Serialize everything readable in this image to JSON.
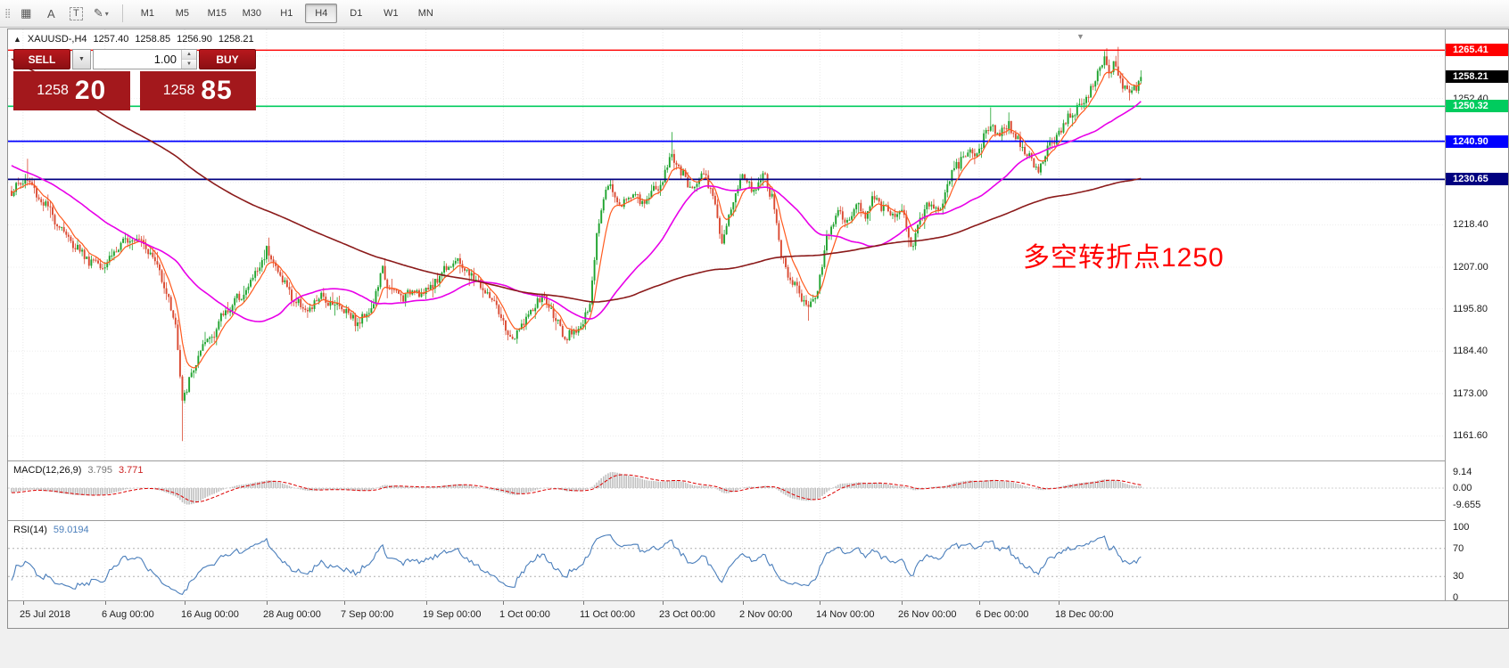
{
  "toolbar": {
    "icons": [
      {
        "name": "toolbar-drag-handle",
        "glyph": "⣿"
      },
      {
        "name": "grid-icon",
        "glyph": "▦"
      },
      {
        "name": "text-annotation-icon",
        "glyph": "A"
      },
      {
        "name": "text-label-icon",
        "glyph": "T"
      },
      {
        "name": "draw-tool-icon",
        "glyph": "✎"
      },
      {
        "name": "dropdown-caret-icon",
        "glyph": "▾"
      }
    ],
    "timeframes": [
      "M1",
      "M5",
      "M15",
      "M30",
      "H1",
      "H4",
      "D1",
      "W1",
      "MN"
    ],
    "active_timeframe": "H4"
  },
  "chart": {
    "header": {
      "collapse_icon": "▲",
      "symbol": "XAUUSD-,H4",
      "open": "1257.40",
      "high": "1258.85",
      "low": "1256.90",
      "close": "1258.21"
    },
    "one_click": {
      "sell_label": "SELL",
      "buy_label": "BUY",
      "volume": "1.00",
      "sell_price": {
        "base": "1258",
        "pips": "20"
      },
      "buy_price": {
        "base": "1258",
        "pips": "85"
      },
      "dropdown_icon": "▼",
      "spin_up_icon": "▲",
      "spin_down_icon": "▼"
    },
    "annotation": {
      "text": "多空转折点1250",
      "color": "#ff0000"
    },
    "shift_marker_icon": "▼"
  },
  "chart_data": {
    "type": "candlestick",
    "symbol": "XAUUSD-",
    "timeframe": "H4",
    "last_ohlc": {
      "open": 1257.4,
      "high": 1258.85,
      "low": 1256.9,
      "close": 1258.21
    },
    "y_range": [
      1155,
      1271
    ],
    "grid_prices": [
      1161.6,
      1173.0,
      1184.4,
      1195.8,
      1207.0,
      1218.4,
      1229.8,
      1241.2,
      1252.4,
      1263.8
    ],
    "y_axis_ticks": [
      {
        "label": "1252.40",
        "price": 1252.4
      },
      {
        "label": "1218.40",
        "price": 1218.4
      },
      {
        "label": "1207.00",
        "price": 1207.0
      },
      {
        "label": "1195.80",
        "price": 1195.8
      },
      {
        "label": "1184.40",
        "price": 1184.4
      },
      {
        "label": "1173.00",
        "price": 1173.0
      },
      {
        "label": "1161.60",
        "price": 1161.6
      }
    ],
    "hlines": [
      {
        "label": "1265.41",
        "price": 1265.41,
        "color": "#ff0000",
        "width": 1.4
      },
      {
        "label": "1250.32",
        "price": 1250.32,
        "color": "#00cc5e",
        "width": 1.6
      },
      {
        "label": "1240.90",
        "price": 1240.9,
        "color": "#0000ff",
        "width": 1.8
      },
      {
        "label": "1230.65",
        "price": 1230.65,
        "color": "#000080",
        "width": 1.8
      }
    ],
    "current_price": {
      "label": "1258.21",
      "price": 1258.21,
      "color": "#000000"
    },
    "bars": 497,
    "close_anchors": [
      [
        0,
        1227
      ],
      [
        6,
        1231
      ],
      [
        12,
        1226
      ],
      [
        18,
        1221
      ],
      [
        26,
        1214
      ],
      [
        34,
        1209
      ],
      [
        41,
        1208
      ],
      [
        48,
        1213
      ],
      [
        55,
        1216
      ],
      [
        62,
        1210
      ],
      [
        68,
        1201
      ],
      [
        72,
        1191
      ],
      [
        75,
        1171
      ],
      [
        78,
        1176
      ],
      [
        82,
        1183
      ],
      [
        88,
        1189
      ],
      [
        95,
        1196
      ],
      [
        102,
        1200
      ],
      [
        108,
        1206
      ],
      [
        112,
        1212
      ],
      [
        117,
        1206
      ],
      [
        123,
        1199
      ],
      [
        130,
        1195
      ],
      [
        136,
        1199
      ],
      [
        142,
        1197
      ],
      [
        146,
        1196
      ],
      [
        152,
        1192
      ],
      [
        158,
        1196
      ],
      [
        163,
        1206
      ],
      [
        166,
        1201
      ],
      [
        171,
        1199
      ],
      [
        177,
        1201
      ],
      [
        182,
        1200
      ],
      [
        188,
        1205
      ],
      [
        194,
        1209
      ],
      [
        200,
        1206
      ],
      [
        206,
        1202
      ],
      [
        211,
        1198
      ],
      [
        216,
        1192
      ],
      [
        219,
        1187
      ],
      [
        224,
        1191
      ],
      [
        229,
        1196
      ],
      [
        234,
        1199
      ],
      [
        239,
        1193
      ],
      [
        243,
        1187
      ],
      [
        247,
        1190
      ],
      [
        251,
        1192
      ],
      [
        254,
        1196
      ],
      [
        257,
        1217
      ],
      [
        260,
        1226
      ],
      [
        263,
        1230
      ],
      [
        267,
        1223
      ],
      [
        272,
        1227
      ],
      [
        277,
        1224
      ],
      [
        281,
        1227
      ],
      [
        286,
        1230
      ],
      [
        290,
        1238
      ],
      [
        294,
        1232
      ],
      [
        299,
        1228
      ],
      [
        304,
        1233
      ],
      [
        308,
        1227
      ],
      [
        312,
        1213
      ],
      [
        316,
        1222
      ],
      [
        320,
        1232
      ],
      [
        325,
        1228
      ],
      [
        330,
        1232
      ],
      [
        334,
        1226
      ],
      [
        338,
        1210
      ],
      [
        343,
        1203
      ],
      [
        347,
        1199
      ],
      [
        350,
        1196
      ],
      [
        354,
        1201
      ],
      [
        358,
        1215
      ],
      [
        362,
        1222
      ],
      [
        366,
        1219
      ],
      [
        371,
        1224
      ],
      [
        375,
        1221
      ],
      [
        379,
        1226
      ],
      [
        383,
        1223
      ],
      [
        387,
        1221
      ],
      [
        391,
        1222
      ],
      [
        395,
        1213
      ],
      [
        399,
        1219
      ],
      [
        403,
        1225
      ],
      [
        407,
        1221
      ],
      [
        411,
        1229
      ],
      [
        415,
        1234
      ],
      [
        419,
        1238
      ],
      [
        423,
        1236
      ],
      [
        426,
        1240
      ],
      [
        430,
        1246
      ],
      [
        434,
        1243
      ],
      [
        438,
        1246
      ],
      [
        442,
        1241
      ],
      [
        446,
        1238
      ],
      [
        450,
        1233
      ],
      [
        453,
        1236
      ],
      [
        456,
        1239
      ],
      [
        460,
        1243
      ],
      [
        464,
        1247
      ],
      [
        468,
        1250
      ],
      [
        472,
        1253
      ],
      [
        476,
        1257
      ],
      [
        480,
        1263
      ],
      [
        482,
        1259
      ],
      [
        485,
        1262
      ],
      [
        488,
        1256
      ],
      [
        492,
        1254
      ],
      [
        496,
        1258.21
      ]
    ],
    "wick_extremes": [
      {
        "i": 7,
        "high": 1236.2
      },
      {
        "i": 75,
        "low": 1160.2
      },
      {
        "i": 290,
        "high": 1243.4
      },
      {
        "i": 350,
        "low": 1192.6
      },
      {
        "i": 430,
        "high": 1250.0
      },
      {
        "i": 486,
        "high": 1266.3
      }
    ],
    "candle_colors": {
      "up": "#1fa32e",
      "down": "#da4a32"
    },
    "moving_averages": [
      {
        "name": "fast",
        "method": "ema",
        "period": 8,
        "color": "#ff5a1e",
        "width": 1.2
      },
      {
        "name": "medium",
        "method": "sma",
        "period": 45,
        "color": "#e800e8",
        "width": 1.6
      },
      {
        "name": "slow",
        "method": "sma",
        "period": 200,
        "color": "#8b1a1a",
        "width": 1.6
      }
    ],
    "time_ticks": [
      {
        "label": "25 Jul 2018",
        "bar": 5
      },
      {
        "label": "6 Aug 00:00",
        "bar": 41
      },
      {
        "label": "16 Aug 00:00",
        "bar": 76
      },
      {
        "label": "28 Aug 00:00",
        "bar": 112
      },
      {
        "label": "7 Sep 00:00",
        "bar": 146
      },
      {
        "label": "19 Sep 00:00",
        "bar": 182
      },
      {
        "label": "1 Oct 00:00",
        "bar": 216
      },
      {
        "label": "11 Oct 00:00",
        "bar": 251
      },
      {
        "label": "23 Oct 00:00",
        "bar": 286
      },
      {
        "label": "2 Nov 00:00",
        "bar": 321
      },
      {
        "label": "14 Nov 00:00",
        "bar": 355
      },
      {
        "label": "26 Nov 00:00",
        "bar": 391
      },
      {
        "label": "6 Dec 00:00",
        "bar": 425
      },
      {
        "label": "18 Dec 00:00",
        "bar": 460
      }
    ]
  },
  "macd": {
    "title": "MACD(12,26,9)",
    "value_main": "3.795",
    "value_signal": "3.771",
    "fast": 12,
    "slow": 26,
    "signal": 9,
    "hist_color": "#c0c0c0",
    "signal_color": "#dd0000",
    "scale": [
      {
        "label": "9.14",
        "value": 9.14
      },
      {
        "label": "0.00",
        "value": 0
      },
      {
        "label": "-9.655",
        "value": -9.655
      }
    ]
  },
  "rsi": {
    "title": "RSI(14)",
    "value": "59.0194",
    "period": 14,
    "line_color": "#4a7ebb",
    "levels": [
      70,
      30
    ],
    "scale": [
      {
        "label": "100",
        "value": 100
      },
      {
        "label": "70",
        "value": 70
      },
      {
        "label": "30",
        "value": 30
      },
      {
        "label": "0",
        "value": 0
      }
    ]
  }
}
